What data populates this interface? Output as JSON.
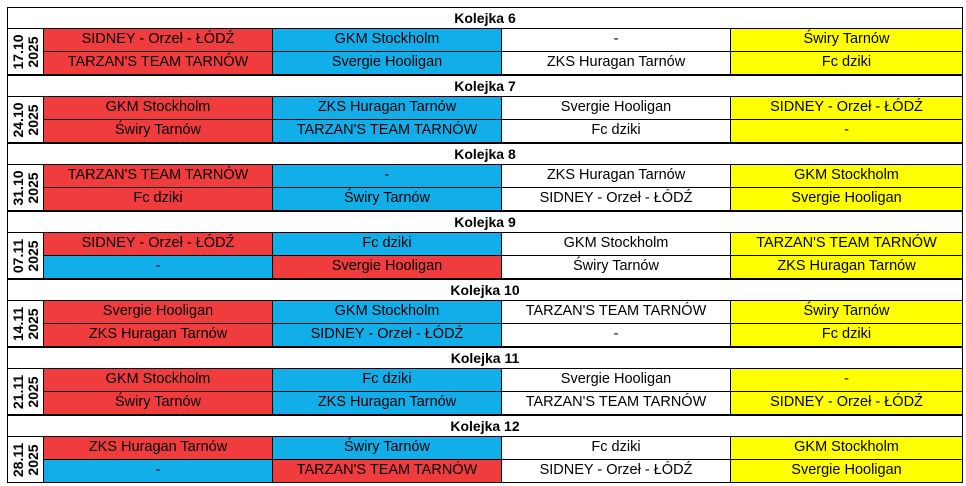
{
  "rounds": [
    {
      "title": "Kolejka 6",
      "date_day": "17.10",
      "date_year": "2025",
      "rows": [
        [
          "SIDNEY - Orzeł - ŁÓDŹ",
          "GKM Stockholm",
          "-",
          "Świry Tarnów"
        ],
        [
          "TARZAN'S TEAM TARNÓW",
          "Svergie Hooligan",
          "ZKS Huragan Tarnów",
          "Fc dziki"
        ]
      ]
    },
    {
      "title": "Kolejka 7",
      "date_day": "24.10",
      "date_year": "2025",
      "rows": [
        [
          "GKM Stockholm",
          "ZKS Huragan Tarnów",
          "Svergie Hooligan",
          "SIDNEY - Orzeł - ŁÓDŹ"
        ],
        [
          "Świry Tarnów",
          "TARZAN'S TEAM TARNÓW",
          "Fc dziki",
          "-"
        ]
      ]
    },
    {
      "title": "Kolejka 8",
      "date_day": "31.10",
      "date_year": "2025",
      "rows": [
        [
          "TARZAN'S TEAM TARNÓW",
          "-",
          "ZKS Huragan Tarnów",
          "GKM Stockholm"
        ],
        [
          "Fc dziki",
          "Świry Tarnów",
          "SIDNEY - Orzeł - ŁÓDŹ",
          "Svergie Hooligan"
        ]
      ]
    },
    {
      "title": "Kolejka 9",
      "date_day": "07.11",
      "date_year": "2025",
      "rows": [
        [
          "SIDNEY - Orzeł - ŁÓDŹ",
          "Fc dziki",
          "GKM Stockholm",
          "TARZAN'S TEAM TARNÓW"
        ],
        [
          "-",
          "Svergie Hooligan",
          "Świry Tarnów",
          "ZKS Huragan Tarnów"
        ]
      ]
    },
    {
      "title": "Kolejka 10",
      "date_day": "14.11",
      "date_year": "2025",
      "rows": [
        [
          "Svergie Hooligan",
          "GKM Stockholm",
          "TARZAN'S TEAM TARNÓW",
          "Świry Tarnów"
        ],
        [
          "ZKS Huragan Tarnów",
          "SIDNEY - Orzeł - ŁÓDŹ",
          "-",
          "Fc dziki"
        ]
      ]
    },
    {
      "title": "Kolejka 11",
      "date_day": "21.11",
      "date_year": "2025",
      "rows": [
        [
          "GKM Stockholm",
          "Fc dziki",
          "Svergie Hooligan",
          "-"
        ],
        [
          "Świry Tarnów",
          "ZKS Huragan Tarnów",
          "TARZAN'S TEAM TARNÓW",
          "SIDNEY - Orzeł - ŁÓDŹ"
        ]
      ]
    },
    {
      "title": "Kolejka 12",
      "date_day": "28.11",
      "date_year": "2025",
      "rows": [
        [
          "ZKS Huragan Tarnów",
          "Świry Tarnów",
          "Fc dziki",
          "GKM Stockholm"
        ],
        [
          "-",
          "TARZAN'S TEAM TARNÓW",
          "SIDNEY - Orzeł - ŁÓDŹ",
          "Svergie Hooligan"
        ]
      ]
    }
  ],
  "colors": {
    "red": "#f03c3c",
    "blue": "#12aeea",
    "white": "#ffffff",
    "yellow": "#ffff00"
  },
  "cell_colors": [
    [
      [
        "red",
        "blue",
        "white",
        "yellow"
      ],
      [
        "red",
        "blue",
        "white",
        "yellow"
      ]
    ],
    [
      [
        "red",
        "blue",
        "white",
        "yellow"
      ],
      [
        "red",
        "blue",
        "white",
        "yellow"
      ]
    ],
    [
      [
        "red",
        "blue",
        "white",
        "yellow"
      ],
      [
        "red",
        "blue",
        "white",
        "yellow"
      ]
    ],
    [
      [
        "red",
        "blue",
        "white",
        "yellow"
      ],
      [
        "blue",
        "red",
        "white",
        "yellow"
      ]
    ],
    [
      [
        "red",
        "blue",
        "white",
        "yellow"
      ],
      [
        "red",
        "blue",
        "white",
        "yellow"
      ]
    ],
    [
      [
        "red",
        "blue",
        "white",
        "yellow"
      ],
      [
        "red",
        "blue",
        "white",
        "yellow"
      ]
    ],
    [
      [
        "red",
        "blue",
        "white",
        "yellow"
      ],
      [
        "blue",
        "red",
        "white",
        "yellow"
      ]
    ]
  ]
}
